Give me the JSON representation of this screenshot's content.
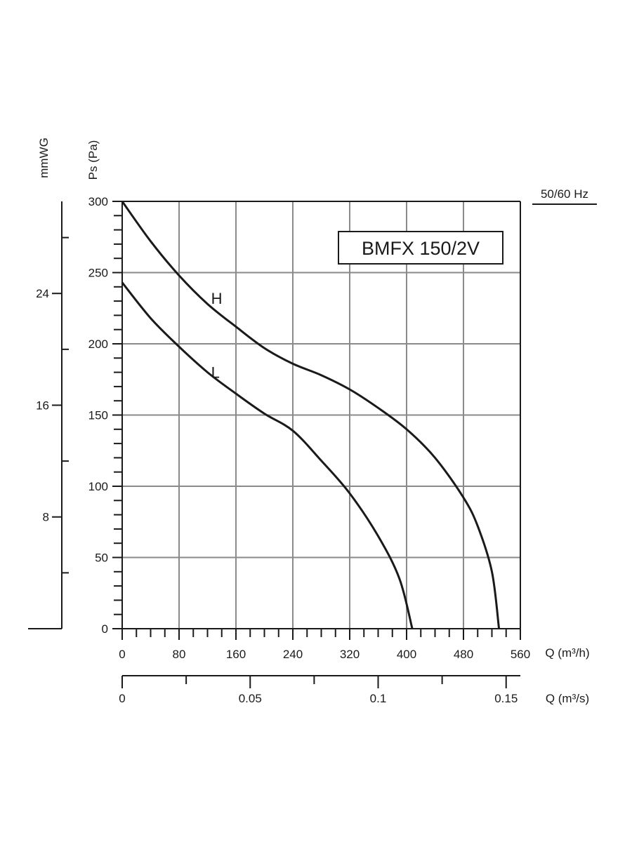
{
  "chart_data": {
    "type": "line",
    "model_label": "BMFX 150/2V",
    "frequency_label": "50/60 Hz",
    "ylabel": "Ps (Pa)",
    "ylabel_secondary": "mmWG",
    "xlabel": "Q (m³/h)",
    "xlabel_secondary": "Q (m³/s)",
    "xlim": [
      0,
      560
    ],
    "ylim": [
      0,
      300
    ],
    "x_ticks": [
      "0",
      "80",
      "160",
      "240",
      "320",
      "400",
      "480",
      "560"
    ],
    "y_ticks": [
      "0",
      "50",
      "100",
      "150",
      "200",
      "250",
      "300"
    ],
    "mmwg_ticks": [
      "8",
      "16",
      "24"
    ],
    "x2_ticks": [
      "0",
      "0.05",
      "0.1",
      "0.15"
    ],
    "grid": true,
    "series": [
      {
        "name": "H",
        "points": [
          [
            0,
            300
          ],
          [
            40,
            272
          ],
          [
            80,
            248
          ],
          [
            120,
            228
          ],
          [
            160,
            212
          ],
          [
            200,
            197
          ],
          [
            240,
            186
          ],
          [
            280,
            178
          ],
          [
            320,
            168
          ],
          [
            360,
            155
          ],
          [
            400,
            140
          ],
          [
            440,
            120
          ],
          [
            480,
            92
          ],
          [
            500,
            72
          ],
          [
            520,
            40
          ],
          [
            530,
            0
          ]
        ]
      },
      {
        "name": "L",
        "points": [
          [
            0,
            243
          ],
          [
            40,
            218
          ],
          [
            80,
            198
          ],
          [
            120,
            180
          ],
          [
            160,
            165
          ],
          [
            200,
            151
          ],
          [
            240,
            139
          ],
          [
            280,
            118
          ],
          [
            320,
            95
          ],
          [
            360,
            65
          ],
          [
            390,
            35
          ],
          [
            408,
            0
          ]
        ]
      }
    ]
  }
}
